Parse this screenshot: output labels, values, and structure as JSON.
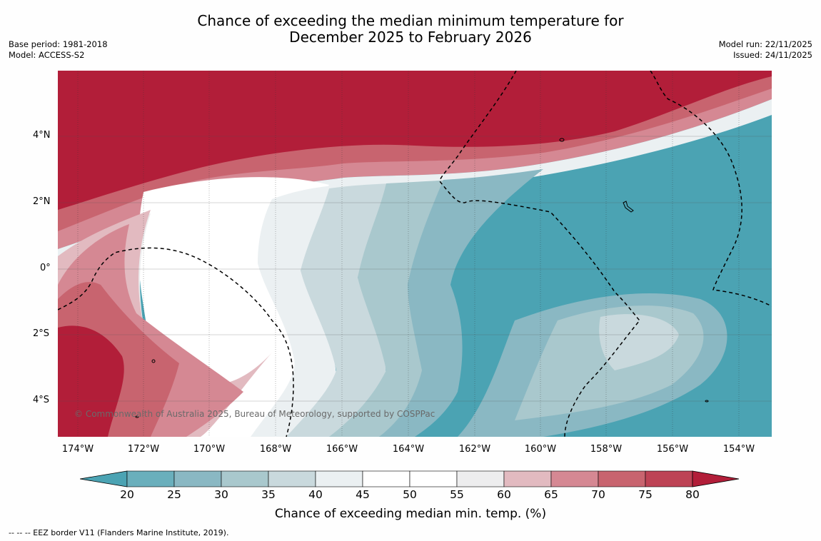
{
  "title": {
    "line1": "Chance of exceeding the median minimum temperature for",
    "line2": "December 2025 to February 2026"
  },
  "meta_left": {
    "base_period": "Base period: 1981-2018",
    "model": "Model: ACCESS-S2"
  },
  "meta_right": {
    "model_run": "Model run: 22/11/2025",
    "issued": "Issued: 24/11/2025"
  },
  "map": {
    "copyright": "© Commonwealth of Australia 2025, Bureau of Meteorology, supported by COSPPac",
    "longitude_labels": [
      "174°W",
      "172°W",
      "170°W",
      "168°W",
      "166°W",
      "164°W",
      "162°W",
      "160°W",
      "158°W",
      "156°W",
      "154°W"
    ],
    "latitude_labels": [
      "4°N",
      "2°N",
      "0°",
      "2°S",
      "4°S"
    ],
    "colors": {
      "ocean_low": "#4ba3b3",
      "warm_high": "#b21e39"
    }
  },
  "colorbar": {
    "ticks": [
      "20",
      "25",
      "30",
      "35",
      "40",
      "45",
      "50",
      "55",
      "60",
      "65",
      "70",
      "75",
      "80"
    ],
    "label": "Chance of exceeding median min. temp. (%)",
    "colors": [
      "#4ba3b3",
      "#6aafbc",
      "#8ab8c3",
      "#a9c8cd",
      "#c9d9dd",
      "#ebf0f2",
      "#ffffff",
      "#ffffff",
      "#ededee",
      "#e2bac0",
      "#d58893",
      "#c8646f",
      "#bd4355",
      "#b21e39"
    ]
  },
  "footnote": "--  --  -- EEZ border V11 (Flanders Marine Institute, 2019)."
}
